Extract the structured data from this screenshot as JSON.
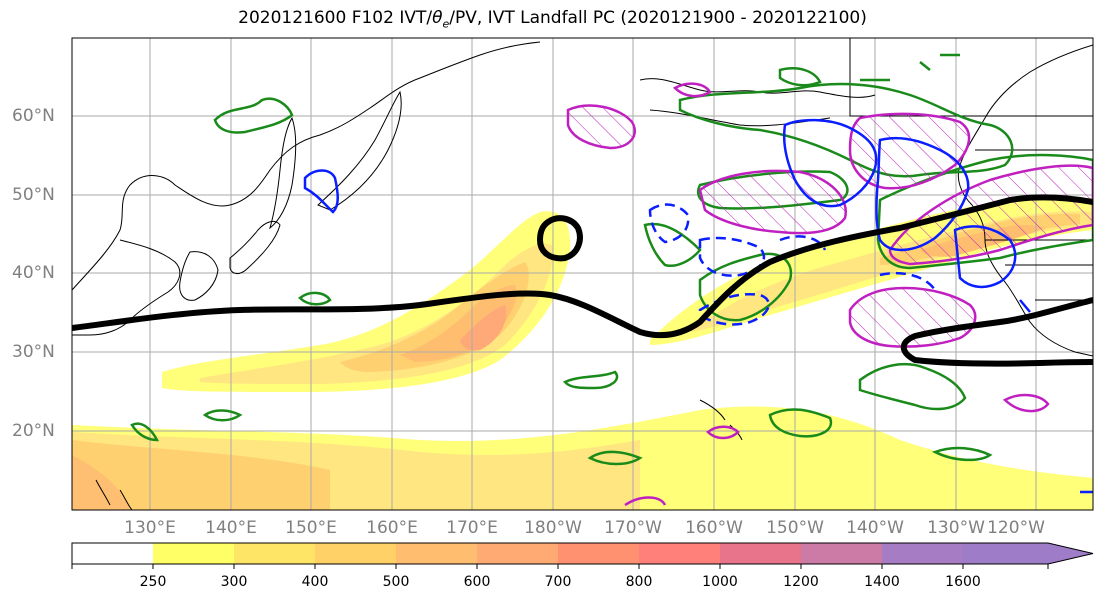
{
  "title": {
    "prefix": "2020121600 F102 IVT/",
    "theta": "θ",
    "theta_sub": "e",
    "suffix": "/PV, IVT Landfall PC (2020121900 - 2020122100)"
  },
  "lat_labels": [
    "60°N",
    "50°N",
    "40°N",
    "30°N",
    "20°N"
  ],
  "lon_labels": [
    "130°E",
    "140°E",
    "150°E",
    "160°E",
    "170°E",
    "180°W",
    "170°W",
    "160°W",
    "150°W",
    "140°W",
    "130°W",
    "120°W"
  ],
  "colorbar": {
    "ticks": [
      "250",
      "300",
      "400",
      "500",
      "600",
      "700",
      "800",
      "1000",
      "1200",
      "1400",
      "1600"
    ],
    "colors": [
      "#ffffff",
      "#ffff66",
      "#ffe566",
      "#ffd166",
      "#ffbd70",
      "#ffaa72",
      "#ff9070",
      "#ff7f7a",
      "#e8748c",
      "#cc7aa6",
      "#a67cc4",
      "#9e7cc8"
    ]
  },
  "legend_colors": {
    "theta_e_contour": "#1a8a1a",
    "pv_contour": "#c020c0",
    "ivt_pc_contour": "#0a1eff",
    "jet_line": "#000000"
  }
}
